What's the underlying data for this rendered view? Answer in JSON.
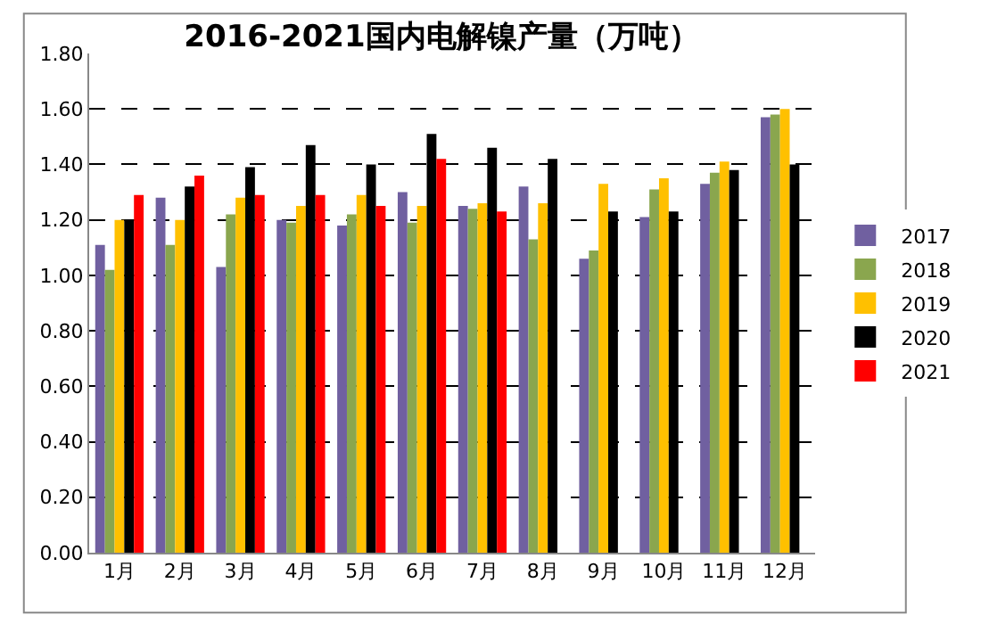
{
  "chart_data": {
    "type": "bar",
    "title": "2016-2021国内电解镍产量（万吨）",
    "categories": [
      "1月",
      "2月",
      "3月",
      "4月",
      "5月",
      "6月",
      "7月",
      "8月",
      "9月",
      "10月",
      "11月",
      "12月"
    ],
    "series": [
      {
        "name": "2017",
        "color": "#7060a0",
        "values": [
          1.11,
          1.28,
          1.03,
          1.2,
          1.18,
          1.3,
          1.25,
          1.32,
          1.06,
          1.21,
          1.33,
          1.57
        ]
      },
      {
        "name": "2018",
        "color": "#8aa64e",
        "values": [
          1.02,
          1.11,
          1.22,
          1.19,
          1.22,
          1.19,
          1.24,
          1.13,
          1.09,
          1.31,
          1.37,
          1.58
        ]
      },
      {
        "name": "2019",
        "color": "#ffc000",
        "values": [
          1.2,
          1.2,
          1.28,
          1.25,
          1.29,
          1.25,
          1.26,
          1.26,
          1.33,
          1.35,
          1.41,
          1.6
        ]
      },
      {
        "name": "2020",
        "color": "#000000",
        "values": [
          1.2,
          1.32,
          1.39,
          1.47,
          1.4,
          1.51,
          1.46,
          1.42,
          1.23,
          1.23,
          1.38,
          1.4
        ]
      },
      {
        "name": "2021",
        "color": "#ff0000",
        "values": [
          1.29,
          1.36,
          1.29,
          1.29,
          1.25,
          1.42,
          1.23,
          null,
          null,
          null,
          null,
          null
        ]
      }
    ],
    "ylim": [
      0,
      1.8
    ],
    "yticks": [
      {
        "value": 0,
        "label": "0.00"
      },
      {
        "value": 0.2,
        "label": "0.20"
      },
      {
        "value": 0.4,
        "label": "0.40"
      },
      {
        "value": 0.6,
        "label": "0.60"
      },
      {
        "value": 0.8,
        "label": "0.80"
      },
      {
        "value": 1.0,
        "label": "1.00"
      },
      {
        "value": 1.2,
        "label": "1.20"
      },
      {
        "value": 1.4,
        "label": "1.40"
      },
      {
        "value": 1.6,
        "label": "1.60"
      },
      {
        "value": 1.8,
        "label": "1.80"
      }
    ],
    "grid": "y",
    "legend": "right"
  }
}
